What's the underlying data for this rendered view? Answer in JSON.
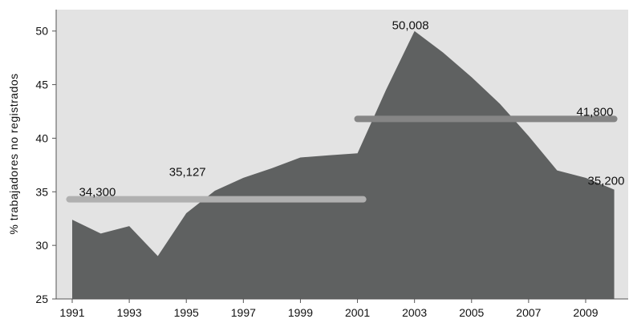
{
  "chart_data": {
    "type": "area",
    "title": "",
    "xlabel": "",
    "ylabel": "% trabajadores no registrados",
    "x": [
      1991,
      1992,
      1993,
      1994,
      1995,
      1996,
      1997,
      1998,
      1999,
      2000,
      2001,
      2002,
      2003,
      2004,
      2005,
      2006,
      2007,
      2008,
      2009,
      2010
    ],
    "values": [
      32.4,
      31.1,
      31.8,
      29.0,
      33.0,
      35.1,
      36.3,
      37.2,
      38.2,
      38.4,
      38.6,
      44.5,
      50.0,
      48.0,
      45.7,
      43.2,
      40.2,
      37.0,
      36.3,
      35.2
    ],
    "xlim": [
      1990.5,
      2010.5
    ],
    "ylim": [
      25,
      52
    ],
    "x_ticks": [
      "1991",
      "1993",
      "1995",
      "1997",
      "1999",
      "2001",
      "2003",
      "2005",
      "2007",
      "2009"
    ],
    "y_ticks": [
      "25",
      "30",
      "35",
      "40",
      "45",
      "50"
    ],
    "grid": false,
    "colors": {
      "area": "#5f6161",
      "plot_bg": "#e3e3e3",
      "avg_1991_2001": "#b0b0b0",
      "avg_2001_2010": "#858585"
    },
    "reference_lines": [
      {
        "x_start": 1990.9,
        "x_end": 2001.2,
        "y": 34.3,
        "label": "34,300"
      },
      {
        "x_start": 2001.0,
        "x_end": 2010.0,
        "y": 41.8,
        "label": "41,800"
      }
    ],
    "annotations": [
      {
        "x": 1996,
        "y": 35.127,
        "text": "35,127"
      },
      {
        "x": 2003,
        "y": 50.008,
        "text": "50,008"
      },
      {
        "x": 2010,
        "y": 35.2,
        "text": "35,200"
      }
    ]
  }
}
